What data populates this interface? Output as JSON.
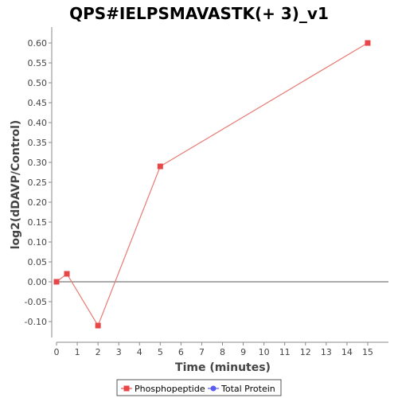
{
  "chart_data": {
    "type": "line",
    "title": "QPS#IELPSMAVASTK(+ 3)_v1",
    "xlabel": "Time (minutes)",
    "ylabel": "log2(dDAVP/Control)",
    "xlim": [
      0,
      16
    ],
    "ylim": [
      -0.14,
      0.64
    ],
    "x_ticks": [
      0,
      1,
      2,
      3,
      4,
      5,
      6,
      7,
      8,
      9,
      10,
      11,
      12,
      13,
      14,
      15
    ],
    "y_ticks": [
      -0.1,
      -0.05,
      0.0,
      0.05,
      0.1,
      0.15,
      0.2,
      0.25,
      0.3,
      0.35,
      0.4,
      0.45,
      0.5,
      0.55,
      0.6
    ],
    "y_tick_labels": [
      "-0.10",
      "-0.05",
      "0.00",
      "0.05",
      "0.10",
      "0.15",
      "0.20",
      "0.25",
      "0.30",
      "0.35",
      "0.40",
      "0.45",
      "0.50",
      "0.55",
      "0.60"
    ],
    "zero_line": true,
    "grid": false,
    "legend_position": "bottom",
    "series": [
      {
        "name": "Phosphopeptide",
        "color": "#e8474a",
        "line_color": "#e87a72",
        "marker": "square",
        "x": [
          0,
          0.5,
          2,
          5,
          15
        ],
        "y": [
          0.0,
          0.02,
          -0.11,
          0.29,
          0.6
        ]
      },
      {
        "name": "Total Protein",
        "color": "#5b5bf0",
        "marker": "circle",
        "x": [],
        "y": []
      }
    ]
  }
}
